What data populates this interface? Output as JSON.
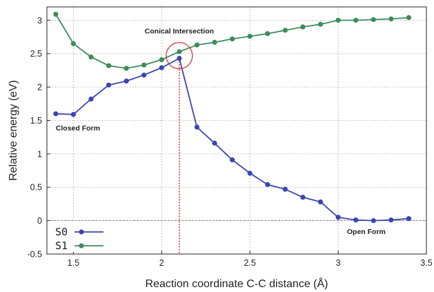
{
  "chart_data": {
    "type": "line",
    "title": "",
    "xlabel": "Reaction coordinate C-C distance (Å)",
    "ylabel": "Relative energy (eV)",
    "xlim": [
      1.35,
      3.5
    ],
    "ylim": [
      -0.5,
      3.2
    ],
    "xticks": [
      "1.5",
      "2",
      "2.5",
      "3",
      "3.5"
    ],
    "yticks": [
      "-0.5",
      "0",
      "0.5",
      "1",
      "1.5",
      "2",
      "2.5",
      "3"
    ],
    "grid": true,
    "legend_position": "bottom-left",
    "x": [
      1.4,
      1.5,
      1.6,
      1.7,
      1.8,
      1.9,
      2.0,
      2.1,
      2.2,
      2.3,
      2.4,
      2.5,
      2.6,
      2.7,
      2.8,
      2.9,
      3.0,
      3.1,
      3.2,
      3.3,
      3.4
    ],
    "series": [
      {
        "name": "S0",
        "color": "#3a45b0",
        "values": [
          1.6,
          1.59,
          1.82,
          2.03,
          2.09,
          2.18,
          2.29,
          2.43,
          1.4,
          1.16,
          0.91,
          0.71,
          0.54,
          0.47,
          0.35,
          0.28,
          0.05,
          0.01,
          0.0,
          0.01,
          0.03
        ]
      },
      {
        "name": "S1",
        "color": "#3d8c5a",
        "values": [
          3.09,
          2.65,
          2.45,
          2.32,
          2.28,
          2.33,
          2.41,
          2.53,
          2.63,
          2.67,
          2.72,
          2.76,
          2.8,
          2.85,
          2.9,
          2.94,
          3.0,
          3.0,
          3.01,
          3.02,
          3.04
        ]
      }
    ],
    "annotations": [
      {
        "text": "Conical Intersection",
        "x": 2.1,
        "y": 2.8
      },
      {
        "text": "Closed Form",
        "x": 1.4,
        "y": 1.35
      },
      {
        "text": "Open Form",
        "x": 3.05,
        "y": -0.2
      }
    ],
    "vline": {
      "x": 2.1,
      "color": "#d63a3a"
    },
    "highlight_circle": {
      "x": 2.1,
      "y": 2.47,
      "color": "#c83a3a"
    }
  }
}
